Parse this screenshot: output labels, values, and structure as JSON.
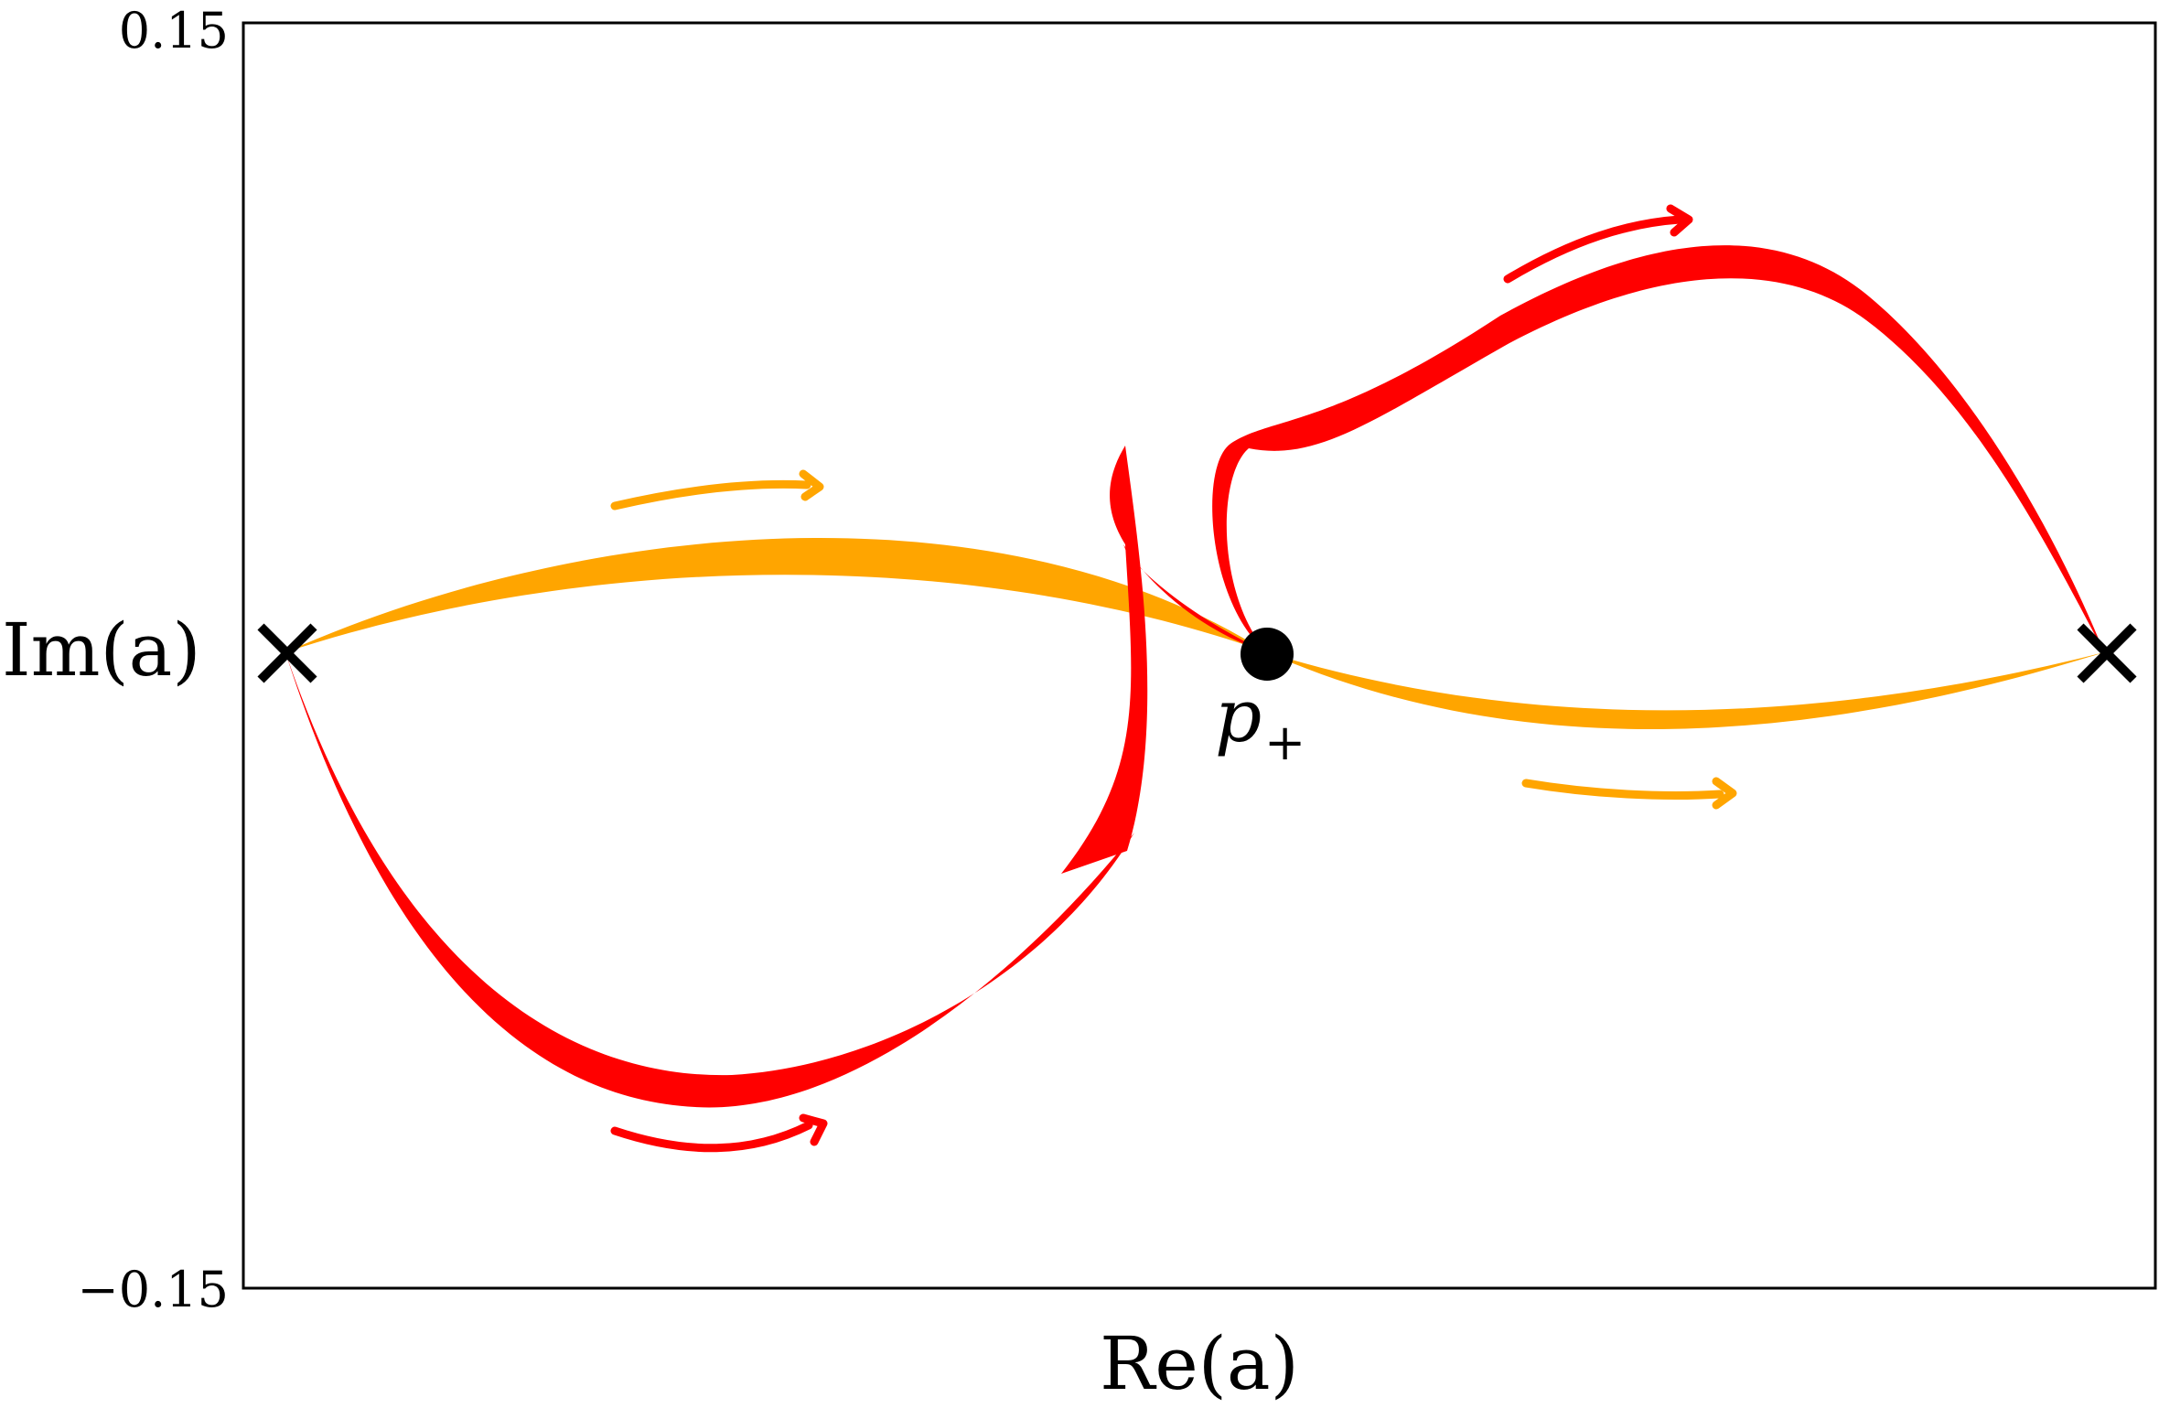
{
  "chart_data": {
    "type": "line",
    "title": "",
    "xlabel": "Re(a)",
    "ylabel": "Im(a)",
    "ylim": [
      -0.15,
      0.15
    ],
    "y_ticks": [
      "0.15",
      "−0.15"
    ],
    "grid": false,
    "legend": "none",
    "colors": {
      "red": "#ff0000",
      "orange": "#ffa500",
      "marker": "#000000",
      "frame": "#000000"
    },
    "annotations": {
      "saddle_label": "p",
      "saddle_label_subscript": "+"
    },
    "series": [
      {
        "color": "red",
        "marker": "arrow-right"
      },
      {
        "color": "orange",
        "marker": "arrow-right"
      }
    ]
  }
}
